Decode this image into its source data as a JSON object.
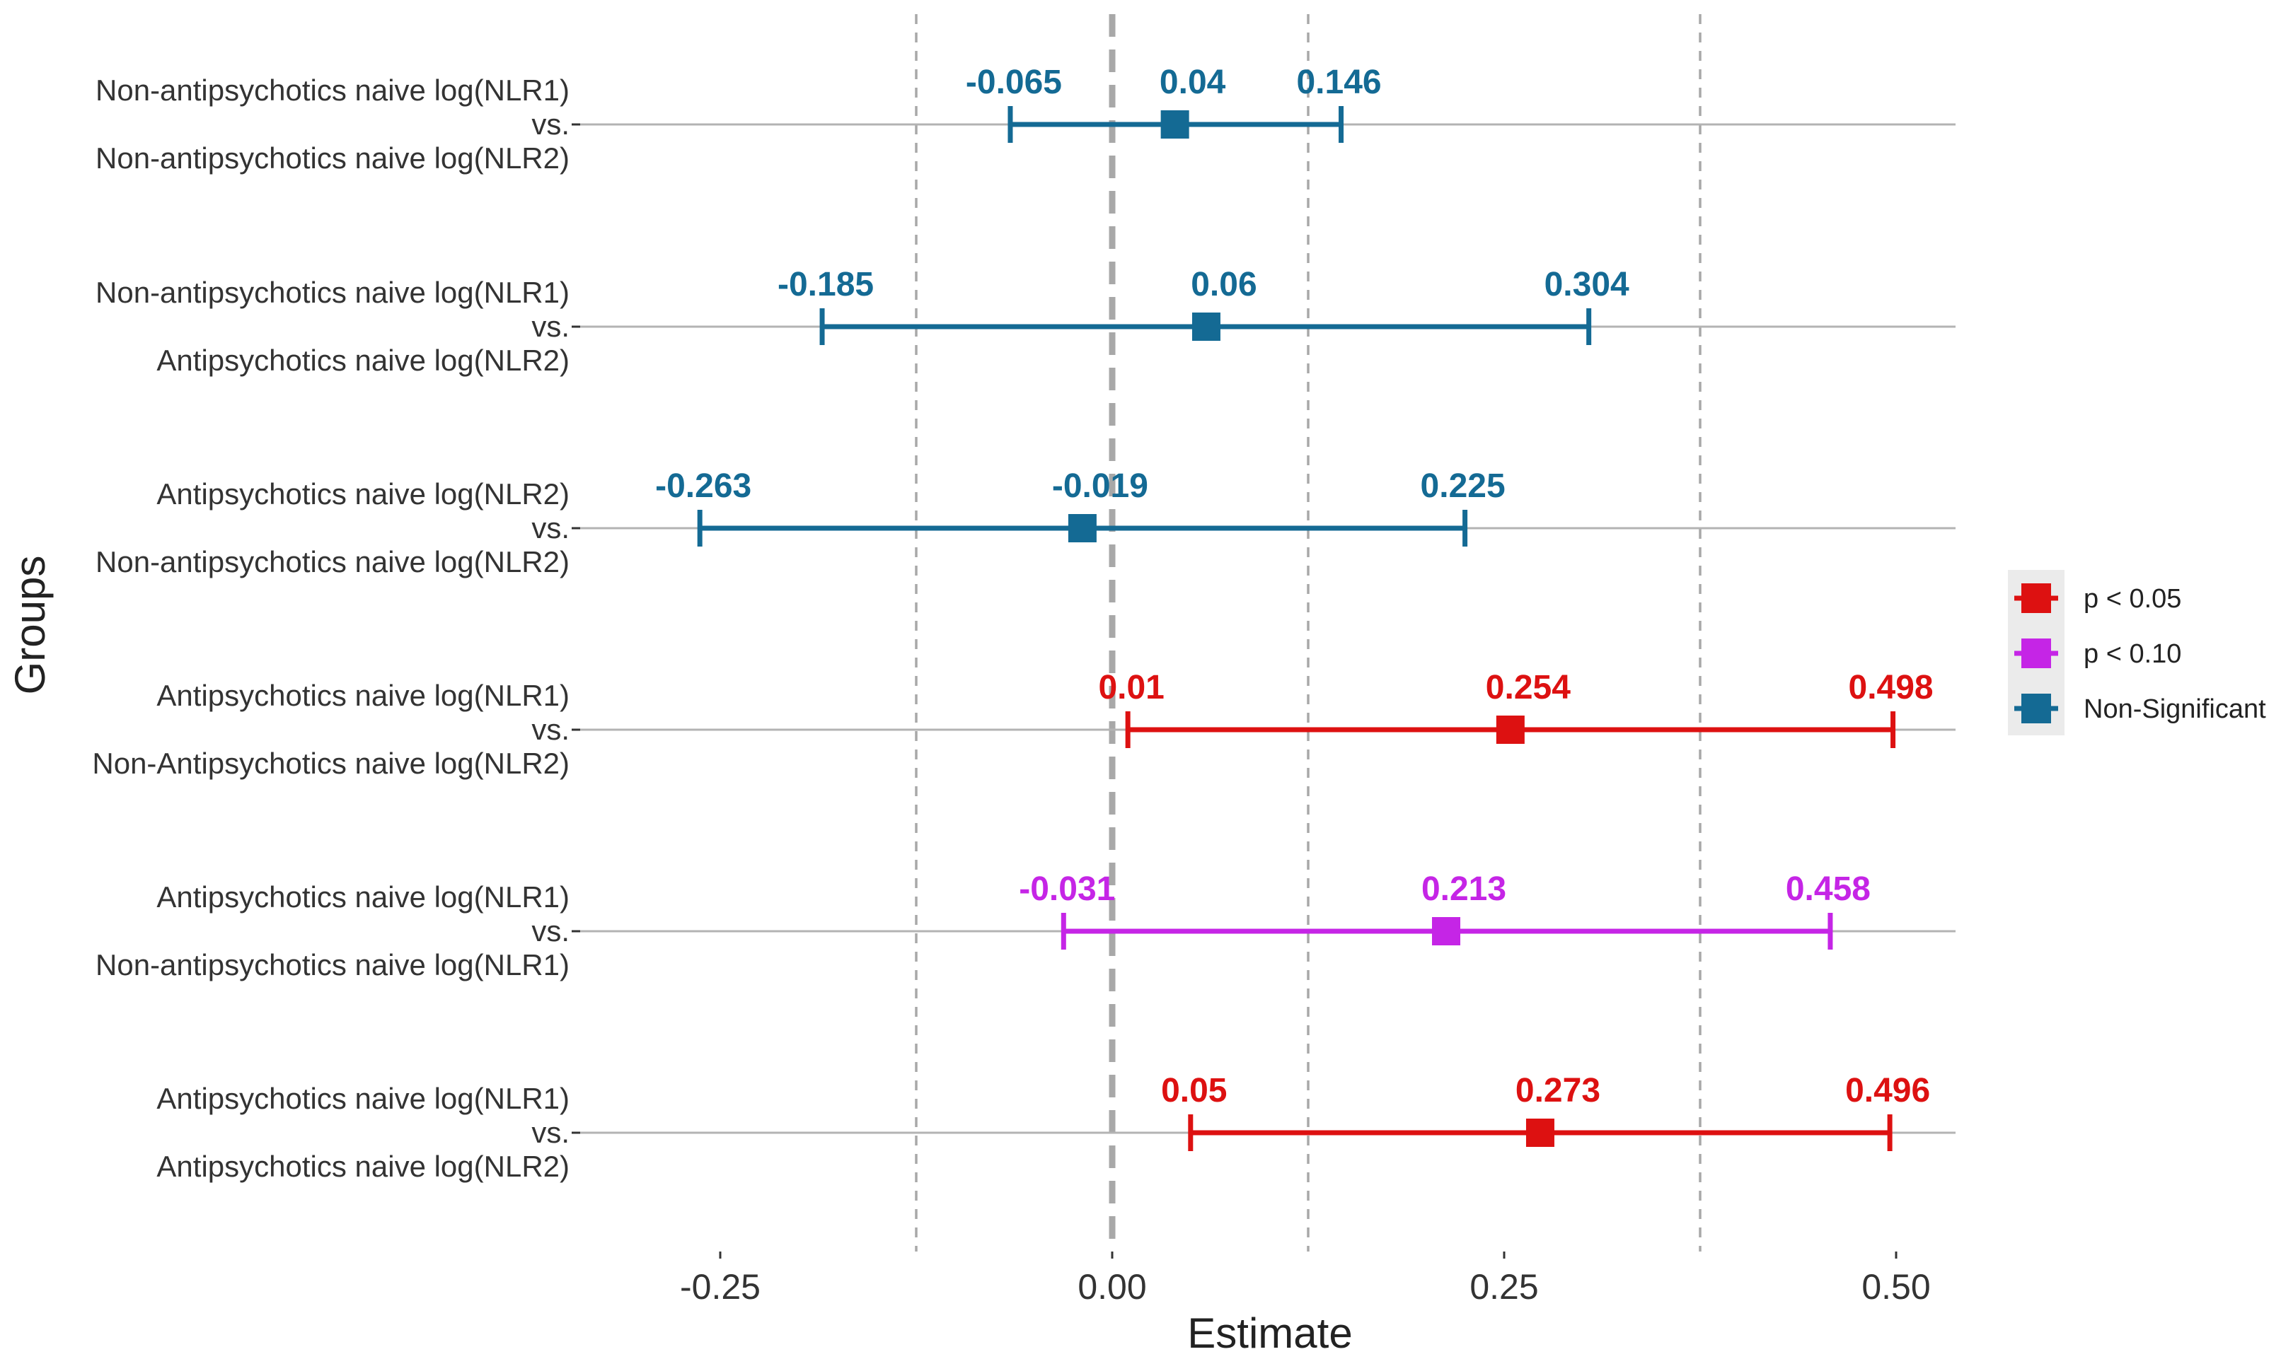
{
  "chart_data": {
    "type": "forest",
    "xlabel": "Estimate",
    "ylabel": "Groups",
    "xlim": [
      -0.34,
      0.54
    ],
    "x_ticks": [
      {
        "value": -0.25,
        "label": "-0.25"
      },
      {
        "value": 0.0,
        "label": "0.00"
      },
      {
        "value": 0.25,
        "label": "0.25"
      },
      {
        "value": 0.5,
        "label": "0.50"
      }
    ],
    "reference_line": 0,
    "dashed_gridlines": [
      -0.125,
      0.125,
      0.375
    ],
    "rows": [
      {
        "line1": "Non-antipsychotics naive log(NLR1)",
        "line2": "vs.",
        "line3": "Non-antipsychotics naive log(NLR2)",
        "lower": -0.065,
        "estimate": 0.04,
        "upper": 0.146,
        "lower_label": "-0.065",
        "estimate_label": "0.04",
        "upper_label": "0.146",
        "significance": "Non-Significant"
      },
      {
        "line1": "Non-antipsychotics naive log(NLR1)",
        "line2": "vs.",
        "line3": "Antipsychotics naive log(NLR2)",
        "lower": -0.185,
        "estimate": 0.06,
        "upper": 0.304,
        "lower_label": "-0.185",
        "estimate_label": "0.06",
        "upper_label": "0.304",
        "significance": "Non-Significant"
      },
      {
        "line1": "Antipsychotics naive log(NLR2)",
        "line2": "vs.",
        "line3": "Non-antipsychotics naive log(NLR2)",
        "lower": -0.263,
        "estimate": -0.019,
        "upper": 0.225,
        "lower_label": "-0.263",
        "estimate_label": "-0.019",
        "upper_label": "0.225",
        "significance": "Non-Significant"
      },
      {
        "line1": "Antipsychotics naive log(NLR1)",
        "line2": "vs.",
        "line3": "Non-Antipsychotics naive log(NLR2)",
        "lower": 0.01,
        "estimate": 0.254,
        "upper": 0.498,
        "lower_label": "0.01",
        "estimate_label": "0.254",
        "upper_label": "0.498",
        "significance": "p < 0.05"
      },
      {
        "line1": "Antipsychotics naive log(NLR1)",
        "line2": "vs.",
        "line3": "Non-antipsychotics naive log(NLR1)",
        "lower": -0.031,
        "estimate": 0.213,
        "upper": 0.458,
        "lower_label": "-0.031",
        "estimate_label": "0.213",
        "upper_label": "0.458",
        "significance": "p < 0.10"
      },
      {
        "line1": "Antipsychotics naive log(NLR1)",
        "line2": "vs.",
        "line3": "Antipsychotics naive log(NLR2)",
        "lower": 0.05,
        "estimate": 0.273,
        "upper": 0.496,
        "lower_label": "0.05",
        "estimate_label": "0.273",
        "upper_label": "0.496",
        "significance": "p < 0.05"
      }
    ],
    "legend": {
      "position": "right",
      "items": [
        {
          "label": "p < 0.05",
          "color": "#dd1111"
        },
        {
          "label": "p < 0.10",
          "color": "#c525e6"
        },
        {
          "label": "Non-Significant",
          "color": "#146a94"
        }
      ]
    }
  }
}
